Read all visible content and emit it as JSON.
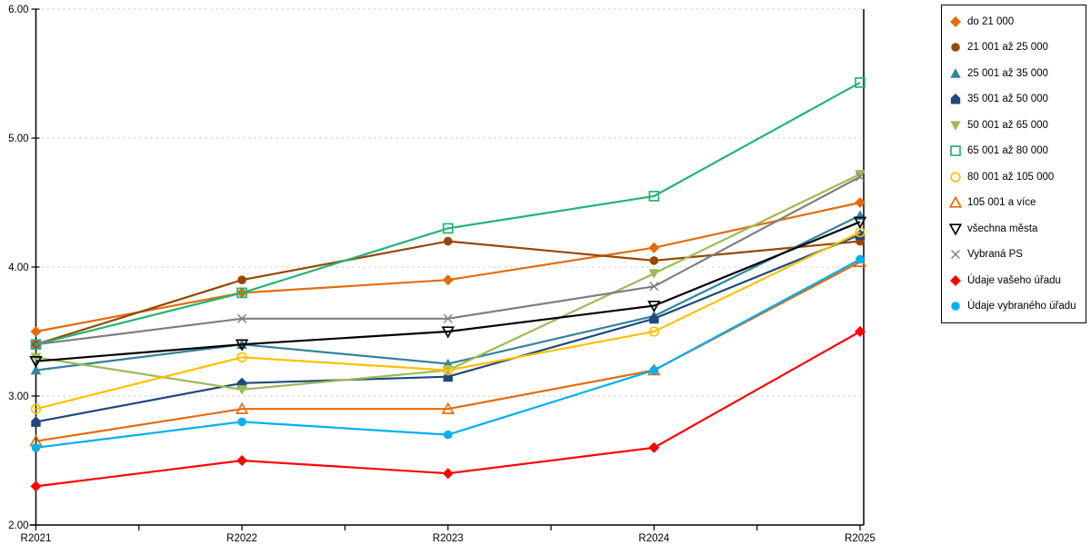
{
  "window": {
    "background": "#ffffff"
  },
  "chart_data": {
    "type": "line",
    "title": "",
    "xlabel": "",
    "ylabel": "",
    "categories": [
      "R2021",
      "R2022",
      "R2023",
      "R2024",
      "R2025"
    ],
    "y_ticks": [
      "2.00",
      "3.00",
      "4.00",
      "5.00",
      "6.00"
    ],
    "ylim": [
      2,
      6
    ],
    "grid": "horizontal-dotted",
    "legend_position": "right",
    "axis_color": "#000000",
    "grid_color": "#bfbfbf",
    "series": [
      {
        "name": "do 21 000",
        "color": "#E46C0A",
        "marker": "diamond",
        "fill": "filled",
        "values": [
          3.5,
          3.8,
          3.9,
          4.15,
          4.5
        ]
      },
      {
        "name": "21 001 až 25 000",
        "color": "#974706",
        "marker": "circle",
        "fill": "filled",
        "values": [
          3.4,
          3.9,
          4.2,
          4.05,
          4.2
        ]
      },
      {
        "name": "25 001 až 35 000",
        "color": "#31849B",
        "marker": "triangle-up",
        "fill": "filled",
        "values": [
          3.2,
          3.4,
          3.25,
          3.62,
          4.4
        ]
      },
      {
        "name": "35 001 až 50 000",
        "color": "#1F497D",
        "marker": "pentagon",
        "fill": "filled",
        "values": [
          2.8,
          3.1,
          3.15,
          3.6,
          4.25
        ]
      },
      {
        "name": "50 001 až 65 000",
        "color": "#9BBB59",
        "marker": "triangle-down",
        "fill": "filled",
        "values": [
          3.3,
          3.05,
          3.2,
          3.95,
          4.72
        ]
      },
      {
        "name": "65 001 až 80 000",
        "color": "#22B573",
        "marker": "square",
        "fill": "open",
        "values": [
          3.4,
          3.8,
          4.3,
          4.55,
          5.43
        ]
      },
      {
        "name": "80 001 až 105 000",
        "color": "#FFC000",
        "marker": "circle",
        "fill": "open",
        "values": [
          2.9,
          3.3,
          3.2,
          3.5,
          4.27
        ]
      },
      {
        "name": "105 001 a více",
        "color": "#E46C0A",
        "marker": "triangle-up",
        "fill": "open",
        "values": [
          2.65,
          2.9,
          2.9,
          3.2,
          4.04
        ]
      },
      {
        "name": "všechna města",
        "color": "#000000",
        "marker": "triangle-down",
        "fill": "open",
        "values": [
          3.27,
          3.4,
          3.5,
          3.7,
          4.35
        ]
      },
      {
        "name": "Vybraná PS",
        "color": "#7F7F7F",
        "marker": "x",
        "fill": "open",
        "values": [
          3.4,
          3.6,
          3.6,
          3.85,
          4.7
        ]
      },
      {
        "name": "Údaje vašeho úřadu",
        "color": "#FF0000",
        "marker": "diamond",
        "fill": "filled",
        "values": [
          2.3,
          2.5,
          2.4,
          2.6,
          3.5
        ]
      },
      {
        "name": "Údaje vybraného úřadu",
        "color": "#00B0F0",
        "marker": "circle",
        "fill": "filled",
        "values": [
          2.6,
          2.8,
          2.7,
          3.2,
          4.06
        ]
      }
    ]
  }
}
